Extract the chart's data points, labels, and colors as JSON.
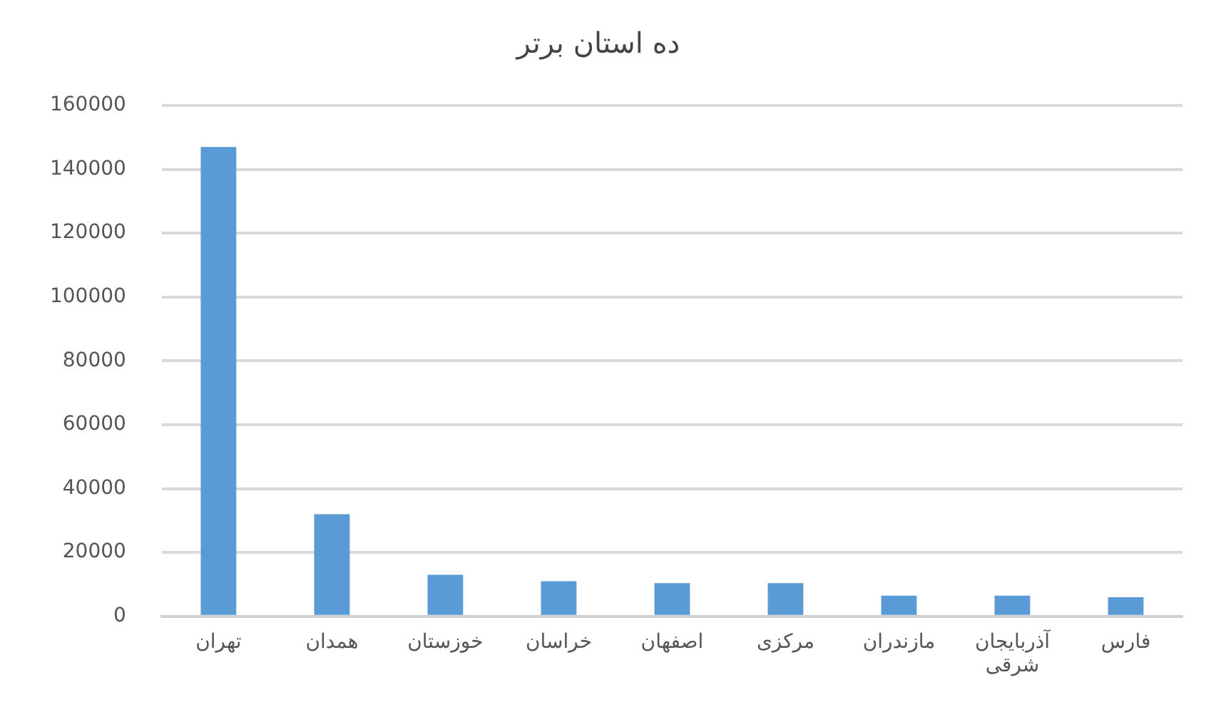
{
  "chart_data": {
    "type": "bar",
    "title": "ده استان برتر",
    "categories": [
      "تهران",
      "همدان",
      "خوزستان",
      "خراسان",
      "اصفهان",
      "مرکزی",
      "مازندران",
      "آذربایجان شرقی",
      "فارس"
    ],
    "values": [
      147000,
      32000,
      13000,
      11000,
      10400,
      10400,
      6500,
      6500,
      6000
    ],
    "color": "#5b9bd5",
    "ylim": [
      0,
      160000
    ],
    "yticks": [
      0,
      20000,
      40000,
      60000,
      80000,
      100000,
      120000,
      140000,
      160000
    ],
    "grid": "y",
    "legend": false
  }
}
